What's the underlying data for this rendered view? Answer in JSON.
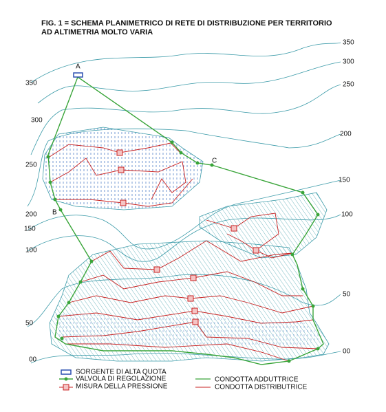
{
  "title": {
    "lines": [
      "FIG. 1 = SCHEMA PLANIMETRICO DI RETE DI DISTRIBUZIONE PER TERRITORIO",
      "AD ALTIMETRIA MOLTO VARIA"
    ]
  },
  "contour_labels": {
    "right": [
      "350",
      "300",
      "250",
      "200",
      "150",
      "100",
      "50",
      "00"
    ],
    "left": [
      "350",
      "300",
      "250",
      "200",
      "150",
      "100",
      "50",
      "00"
    ]
  },
  "points": [
    "A",
    "B",
    "C"
  ],
  "legend": [
    "SORGENTE DI ALTA QUOTA",
    "VALVOLA DI REGOLAZIONE",
    "MISURA DELLA PRESSIONE",
    "CONDOTTA ADDUTTRICE",
    "CONDOTTA DISTRIBUTRICE"
  ]
}
